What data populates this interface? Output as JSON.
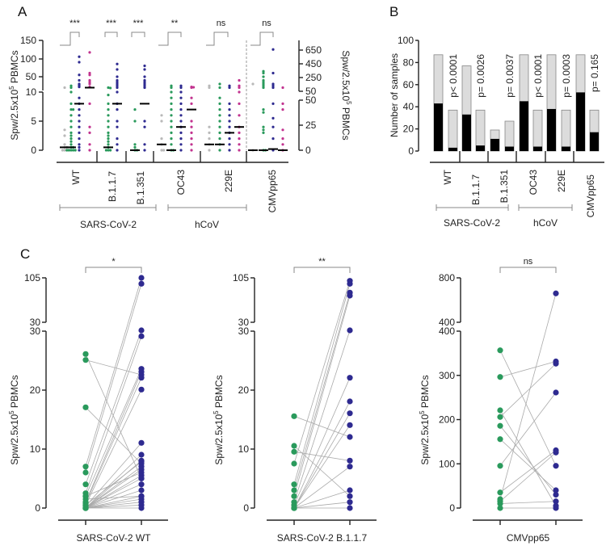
{
  "colors": {
    "unexposed": "#b9b9b9",
    "convalescent": "#2a9a5c",
    "vaccinated": "#2e2a90",
    "vaccinated2": "#c2338f",
    "bar_positive": "#000000",
    "bar_negative": "#dcdcdc"
  },
  "ylabel": {
    "pre": "Spw/2.5x10",
    "sup": "5",
    "post": " PBMCs"
  },
  "chart_data": [
    {
      "panel": "A",
      "type": "scatter",
      "left_ticks_upper": [
        "150",
        "100",
        "50"
      ],
      "left_ticks_lower": [
        "10",
        "5",
        "0"
      ],
      "right_ticks_upper": [
        "650",
        "450",
        "250",
        "50"
      ],
      "right_ticks_lower": [
        "50",
        "25",
        "0"
      ],
      "categories": [
        "WT",
        "B.1.1.7",
        "B.1.351",
        "OC43",
        "229E",
        "CMVpp65"
      ],
      "groups": [
        "SARS-CoV-2",
        "hCoV"
      ],
      "significance": [
        "***",
        "***",
        "***",
        "**",
        "ns",
        "ns"
      ],
      "columns": [
        {
          "cat": "WT",
          "series": "unexposed",
          "median": 0.5,
          "values": [
            20,
            3.5,
            2.5,
            1,
            0.5,
            0.5,
            0,
            0,
            0,
            0
          ]
        },
        {
          "cat": "WT",
          "series": "convalescent",
          "median": 0.5,
          "values": [
            25,
            20,
            10,
            8,
            7,
            7,
            6,
            5,
            4,
            3,
            2.5,
            2,
            1.5,
            1,
            0.5,
            0.5,
            0,
            0,
            0,
            0,
            0
          ]
        },
        {
          "cat": "WT",
          "series": "vaccinated",
          "median": 8,
          "values": [
            105,
            90,
            55,
            40,
            30,
            28,
            25,
            22,
            9,
            8,
            7,
            6,
            5,
            4,
            3,
            2,
            1,
            0.5,
            0
          ]
        },
        {
          "cat": "WT",
          "series": "vaccinated2",
          "median": 20,
          "values": [
            117,
            60,
            55,
            40,
            35,
            30,
            22,
            8,
            4,
            3,
            1,
            0
          ]
        },
        {
          "cat": "B.1.1.7",
          "series": "convalescent",
          "median": 0.5,
          "values": [
            20,
            19,
            9.5,
            8,
            7,
            6,
            5,
            4,
            3,
            2.5,
            2,
            1.5,
            1,
            0.5,
            0,
            0,
            0
          ]
        },
        {
          "cat": "B.1.1.7",
          "series": "vaccinated",
          "median": 8,
          "values": [
            85,
            70,
            50,
            40,
            35,
            30,
            25,
            20,
            10,
            8,
            7,
            5,
            4,
            2,
            1,
            0
          ]
        },
        {
          "cat": "B.1.351",
          "series": "convalescent",
          "median": 0,
          "values": [
            7,
            5,
            1,
            0.5,
            0,
            0
          ]
        },
        {
          "cat": "B.1.351",
          "series": "vaccinated",
          "median": 8,
          "values": [
            80,
            70,
            50,
            40,
            35,
            30,
            25,
            20,
            5,
            4,
            1,
            0
          ]
        },
        {
          "cat": "OC43",
          "series": "unexposed",
          "median": 1,
          "values": [
            6,
            5,
            2,
            1,
            0,
            0
          ]
        },
        {
          "cat": "OC43",
          "series": "convalescent",
          "median": 0,
          "values": [
            25,
            20,
            10,
            9,
            8,
            7,
            6,
            5,
            4,
            3,
            2,
            1,
            0,
            0
          ]
        },
        {
          "cat": "OC43",
          "series": "vaccinated",
          "median": 4,
          "values": [
            25,
            20,
            10,
            9,
            8,
            7,
            6,
            5,
            4,
            3,
            2,
            1,
            0
          ]
        },
        {
          "cat": "OC43",
          "series": "vaccinated2",
          "median": 7,
          "values": [
            22,
            21,
            20,
            9,
            8,
            5,
            4,
            3,
            2,
            1,
            0
          ]
        },
        {
          "cat": "229E",
          "series": "unexposed",
          "median": 1,
          "values": [
            25,
            20,
            4,
            3,
            2,
            1,
            0
          ]
        },
        {
          "cat": "229E",
          "series": "convalescent",
          "median": 1,
          "values": [
            30,
            20,
            9,
            8,
            7,
            6,
            5,
            4,
            3,
            2,
            1,
            0
          ]
        },
        {
          "cat": "229E",
          "series": "vaccinated",
          "median": 3,
          "values": [
            25,
            20,
            8,
            7,
            6,
            5,
            4,
            3,
            2,
            1,
            0
          ]
        },
        {
          "cat": "229E",
          "series": "vaccinated2",
          "median": 4,
          "values": [
            40,
            25,
            20,
            10,
            8,
            6,
            4,
            3,
            2,
            1,
            0
          ]
        },
        {
          "cat": "CMVpp65",
          "series": "unexposed",
          "median": 0,
          "values": [
            30,
            0
          ]
        },
        {
          "cat": "CMVpp65",
          "series": "convalescent",
          "median": 0,
          "values": [
            65,
            60,
            50,
            40,
            35,
            30,
            25,
            20,
            7,
            6.5,
            4,
            3.5,
            3,
            0,
            0
          ]
        },
        {
          "cat": "CMVpp65",
          "series": "vaccinated",
          "median": 0.2,
          "values": [
            125,
            60,
            30,
            25,
            20,
            8,
            5.5,
            4,
            2,
            0
          ]
        },
        {
          "cat": "CMVpp65",
          "series": "vaccinated2",
          "median": 0,
          "values": [
            20,
            8,
            7,
            3.5,
            2,
            1,
            0
          ]
        }
      ]
    },
    {
      "panel": "B",
      "type": "bar",
      "ylabel": "Number of samples",
      "ylim": [
        0,
        100
      ],
      "ticks": [
        "0",
        "20",
        "40",
        "60",
        "80",
        "100"
      ],
      "categories": [
        "WT",
        "B.1.1.7",
        "B.1.351",
        "OC43",
        "229E",
        "CMVpp65"
      ],
      "groups": [
        "SARS-CoV-2",
        "hCoV"
      ],
      "pvalues": [
        "p< 0.0001",
        "p= 0.0026",
        "p= 0.0037",
        "p< 0.0001",
        "p= 0.0003",
        "p= 0.165"
      ],
      "bars": [
        {
          "total": 87,
          "positive": 43
        },
        {
          "total": 37,
          "positive": 3
        },
        {
          "total": 77,
          "positive": 33
        },
        {
          "total": 37,
          "positive": 5
        },
        {
          "total": 19,
          "positive": 11
        },
        {
          "total": 27,
          "positive": 4
        },
        {
          "total": 87,
          "positive": 45
        },
        {
          "total": 37,
          "positive": 4
        },
        {
          "total": 87,
          "positive": 38
        },
        {
          "total": 37,
          "positive": 4
        },
        {
          "total": 87,
          "positive": 53
        },
        {
          "total": 37,
          "positive": 17
        }
      ]
    },
    {
      "panel": "C",
      "type": "paired-scatter",
      "plots": [
        {
          "xlabel": "SARS-CoV-2 WT",
          "significance": "*",
          "ticks_upper": [
            "105",
            "30"
          ],
          "ticks_lower": [
            "30",
            "20",
            "10",
            "0"
          ],
          "break": 30,
          "max": 105,
          "pairs": [
            [
              26,
              5
            ],
            [
              25,
              22.5
            ],
            [
              17,
              7.5
            ],
            [
              7,
              105
            ],
            [
              6,
              95
            ],
            [
              4,
              30
            ],
            [
              2.5,
              29
            ],
            [
              2,
              23.5
            ],
            [
              1,
              23
            ],
            [
              0.8,
              22
            ],
            [
              0.5,
              20
            ],
            [
              0.3,
              11
            ],
            [
              0,
              9
            ],
            [
              0,
              8
            ],
            [
              0,
              7
            ],
            [
              0,
              6.5
            ],
            [
              0,
              5.5
            ],
            [
              0,
              5
            ],
            [
              0,
              4
            ],
            [
              0,
              3
            ],
            [
              0,
              2
            ],
            [
              0,
              1.5
            ],
            [
              0,
              1
            ],
            [
              0,
              0.5
            ],
            [
              0,
              0
            ],
            [
              1.5,
              2
            ],
            [
              2,
              6
            ],
            [
              0.5,
              7.8
            ]
          ]
        },
        {
          "xlabel": "SARS-CoV-2 B.1.1.7",
          "significance": "**",
          "ticks_upper": [
            "105",
            "30"
          ],
          "ticks_lower": [
            "30",
            "20",
            "10",
            "0"
          ],
          "break": 30,
          "max": 105,
          "pairs": [
            [
              15.5,
              12
            ],
            [
              10.5,
              2
            ],
            [
              9.5,
              8
            ],
            [
              7.5,
              100
            ],
            [
              4,
              95
            ],
            [
              3,
              80
            ],
            [
              2,
              75
            ],
            [
              1,
              30
            ],
            [
              0.5,
              22
            ],
            [
              0,
              18
            ],
            [
              0,
              16
            ],
            [
              0,
              14
            ],
            [
              0,
              7
            ],
            [
              0,
              3
            ],
            [
              0,
              1
            ],
            [
              0,
              0
            ]
          ]
        },
        {
          "xlabel": "CMVpp65",
          "significance": "ns",
          "ticks_upper": [
            "800",
            "400"
          ],
          "ticks_lower": [
            "400",
            "300",
            "200",
            "100",
            "0"
          ],
          "break": 400,
          "max": 800,
          "pairs": [
            [
              355,
              95
            ],
            [
              295,
              330
            ],
            [
              220,
              5
            ],
            [
              205,
              325
            ],
            [
              185,
              30
            ],
            [
              155,
              40
            ],
            [
              95,
              260
            ],
            [
              35,
              130
            ],
            [
              20,
              660
            ],
            [
              15,
              125
            ],
            [
              10,
              15
            ],
            [
              0,
              0
            ]
          ]
        }
      ]
    }
  ]
}
